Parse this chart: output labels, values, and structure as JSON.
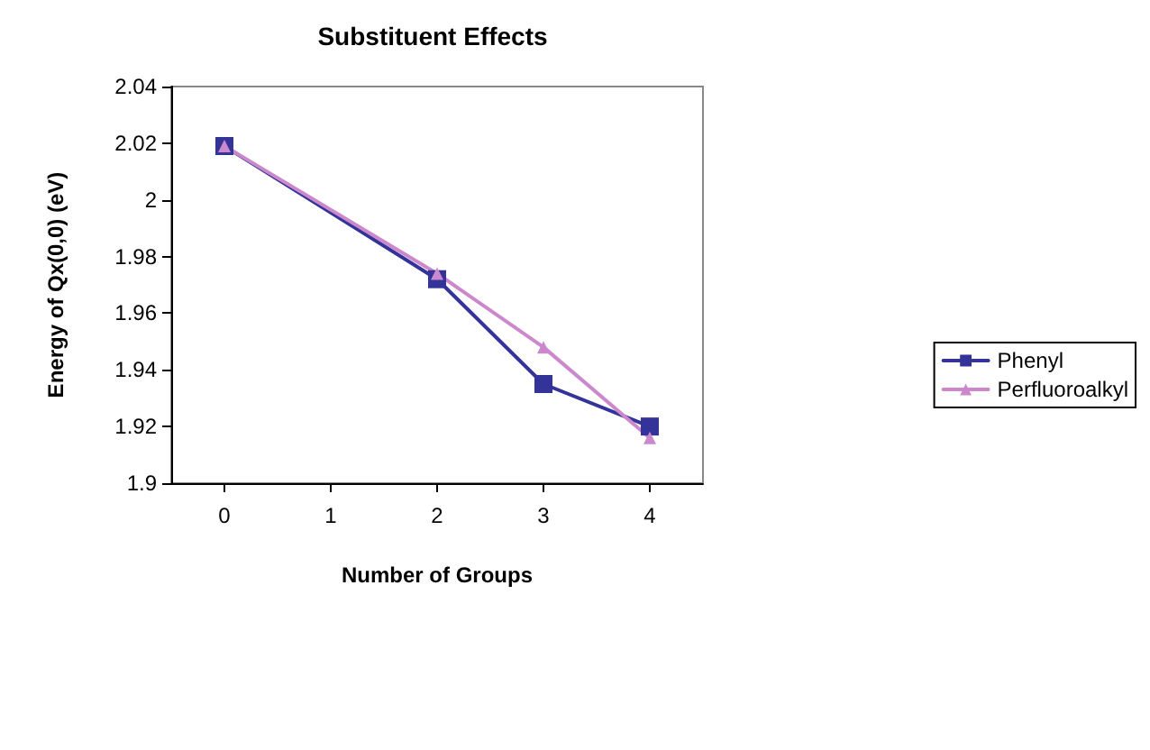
{
  "chart_data": {
    "type": "line",
    "title": "Substituent Effects",
    "xlabel": "Number of Groups",
    "ylabel": "Energy of Qx(0,0) (eV)",
    "x": [
      0,
      2,
      3,
      4
    ],
    "series": [
      {
        "name": "Phenyl",
        "color": "#333399",
        "marker": "square",
        "values": [
          2.019,
          1.972,
          1.935,
          1.92
        ]
      },
      {
        "name": "Perfluoroalkyl",
        "color": "#cc88cc",
        "marker": "triangle",
        "values": [
          2.019,
          1.974,
          1.948,
          1.916
        ]
      }
    ],
    "xlim": [
      -0.5,
      4.5
    ],
    "xticks": [
      0,
      1,
      2,
      3,
      4
    ],
    "ylim": [
      1.9,
      2.04
    ],
    "yticks": [
      1.9,
      1.92,
      1.94,
      1.96,
      1.98,
      2,
      2.02,
      2.04
    ],
    "grid": false,
    "legend": "right",
    "line_style": "solid"
  }
}
